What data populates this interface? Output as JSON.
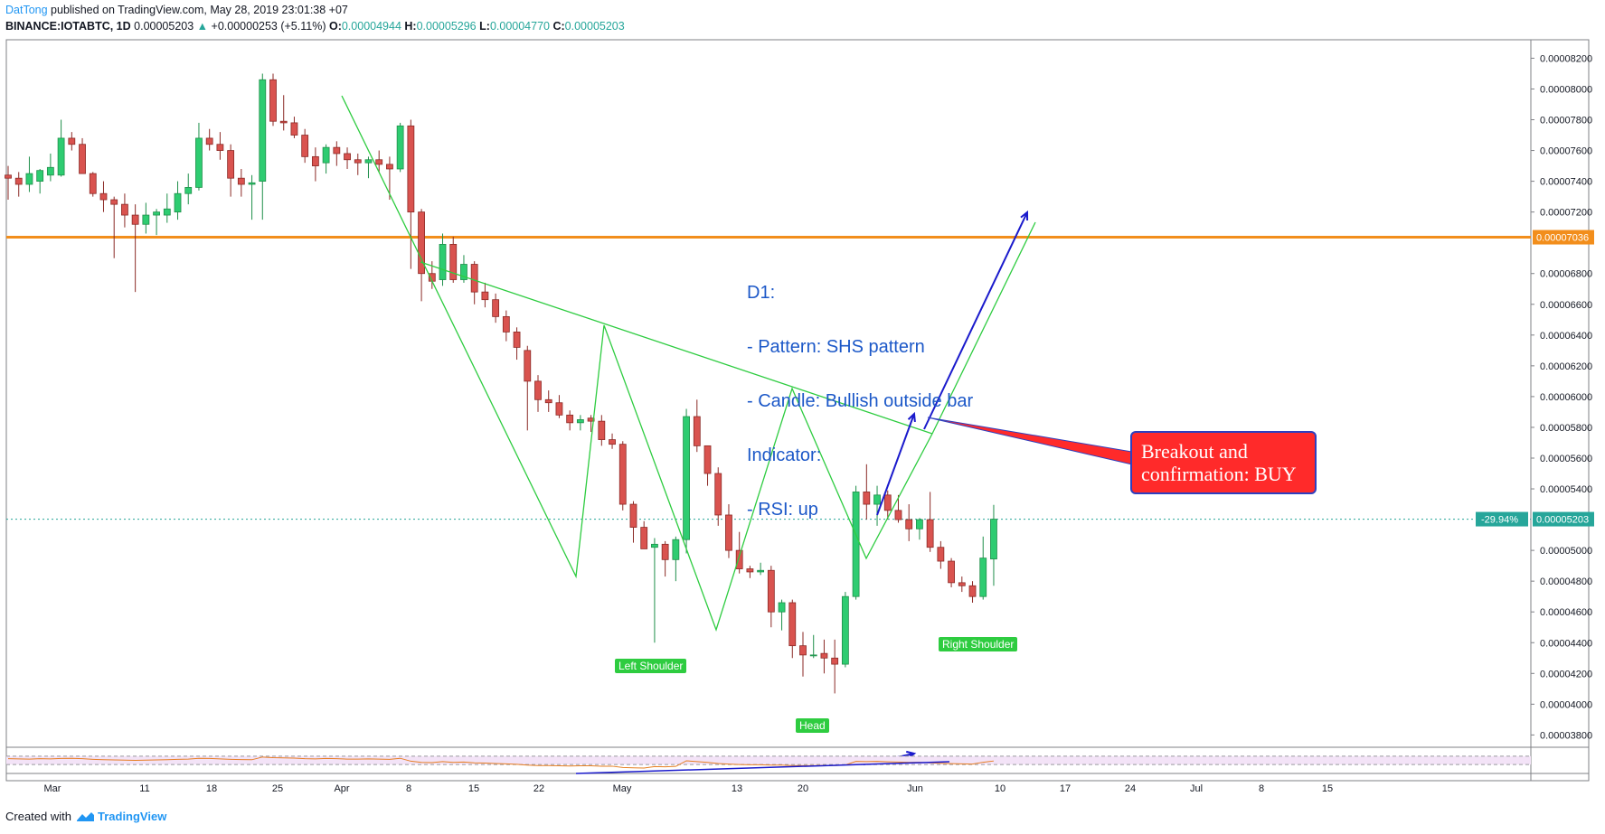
{
  "header": {
    "author": "DatTong",
    "published": "published on TradingView.com, May 28, 2019 23:01:38 +07",
    "symbol": "BINANCE:IOTABTC, 1D",
    "last": "0.00005203",
    "change": "+0.00000253 (+5.11%)",
    "o_label": "O:",
    "o": "0.00004944",
    "h_label": "H:",
    "h": "0.00005296",
    "l_label": "L:",
    "l": "0.00004770",
    "c_label": "C:",
    "c": "0.00005203"
  },
  "annotations": {
    "note_lines": [
      "D1:",
      "- Pattern: SHS pattern",
      "- Candle: Bullish outside bar",
      "Indicator:",
      "- RSI: up"
    ],
    "callout_lines": [
      "Breakout and",
      "confirmation: BUY"
    ],
    "left_shoulder": "Left Shoulder",
    "head": "Head",
    "right_shoulder": "Right Shoulder"
  },
  "colors": {
    "bull": "#26a69a",
    "bull_fill": "#2ecc71",
    "bear": "#d9534f",
    "pattern": "#2ecc40",
    "horizontal": "#f28e1c",
    "arrow": "#1a1acc",
    "current": "#26a69a"
  },
  "chart_data": {
    "type": "candlestick",
    "y_axis_labels": [
      "0.00008200",
      "0.00008000",
      "0.00007800",
      "0.00007600",
      "0.00007400",
      "0.00007200",
      "0.00006800",
      "0.00006600",
      "0.00006400",
      "0.00006200",
      "0.00006000",
      "0.00005800",
      "0.00005600",
      "0.00005400",
      "0.00005000",
      "0.00004800",
      "0.00004600",
      "0.00004400",
      "0.00004200",
      "0.00004000",
      "0.00003800"
    ],
    "x_axis_labels": [
      "Mar",
      "11",
      "18",
      "25",
      "Apr",
      "8",
      "15",
      "22",
      "May",
      "13",
      "20",
      "Jun",
      "10",
      "17",
      "24",
      "Jul",
      "8",
      "15"
    ],
    "ylim": [
      3.72e-05,
      8.32e-05
    ],
    "horizontal_level": {
      "value": 7.036e-05,
      "label": "0.00007036"
    },
    "current_price": {
      "value": 5.203e-05,
      "label": "0.00005203",
      "pct": "-29.94%"
    },
    "candles": [
      {
        "o": 7.44e-05,
        "h": 7.5e-05,
        "l": 7.28e-05,
        "c": 7.42e-05
      },
      {
        "o": 7.42e-05,
        "h": 7.46e-05,
        "l": 7.3e-05,
        "c": 7.38e-05
      },
      {
        "o": 7.38e-05,
        "h": 7.56e-05,
        "l": 7.33e-05,
        "c": 7.45e-05
      },
      {
        "o": 7.4e-05,
        "h": 7.48e-05,
        "l": 7.32e-05,
        "c": 7.47e-05
      },
      {
        "o": 7.44e-05,
        "h": 7.58e-05,
        "l": 7.4e-05,
        "c": 7.49e-05
      },
      {
        "o": 7.44e-05,
        "h": 7.8e-05,
        "l": 7.43e-05,
        "c": 7.68e-05
      },
      {
        "o": 7.68e-05,
        "h": 7.72e-05,
        "l": 7.6e-05,
        "c": 7.64e-05
      },
      {
        "o": 7.64e-05,
        "h": 7.68e-05,
        "l": 7.45e-05,
        "c": 7.45e-05
      },
      {
        "o": 7.45e-05,
        "h": 7.46e-05,
        "l": 7.3e-05,
        "c": 7.32e-05
      },
      {
        "o": 7.32e-05,
        "h": 7.4e-05,
        "l": 7.2e-05,
        "c": 7.28e-05
      },
      {
        "o": 7.28e-05,
        "h": 7.3e-05,
        "l": 6.9e-05,
        "c": 7.25e-05
      },
      {
        "o": 7.25e-05,
        "h": 7.32e-05,
        "l": 7.1e-05,
        "c": 7.18e-05
      },
      {
        "o": 7.18e-05,
        "h": 7.25e-05,
        "l": 6.68e-05,
        "c": 7.12e-05
      },
      {
        "o": 7.12e-05,
        "h": 7.26e-05,
        "l": 7.06e-05,
        "c": 7.18e-05
      },
      {
        "o": 7.18e-05,
        "h": 7.22e-05,
        "l": 7.05e-05,
        "c": 7.2e-05
      },
      {
        "o": 7.18e-05,
        "h": 7.32e-05,
        "l": 7.13e-05,
        "c": 7.22e-05
      },
      {
        "o": 7.2e-05,
        "h": 7.4e-05,
        "l": 7.15e-05,
        "c": 7.32e-05
      },
      {
        "o": 7.32e-05,
        "h": 7.45e-05,
        "l": 7.25e-05,
        "c": 7.36e-05
      },
      {
        "o": 7.36e-05,
        "h": 7.78e-05,
        "l": 7.34e-05,
        "c": 7.68e-05
      },
      {
        "o": 7.68e-05,
        "h": 7.74e-05,
        "l": 7.6e-05,
        "c": 7.64e-05
      },
      {
        "o": 7.64e-05,
        "h": 7.72e-05,
        "l": 7.54e-05,
        "c": 7.6e-05
      },
      {
        "o": 7.6e-05,
        "h": 7.64e-05,
        "l": 7.3e-05,
        "c": 7.42e-05
      },
      {
        "o": 7.42e-05,
        "h": 7.48e-05,
        "l": 7.3e-05,
        "c": 7.38e-05
      },
      {
        "o": 7.38e-05,
        "h": 7.44e-05,
        "l": 7.15e-05,
        "c": 7.39e-05
      },
      {
        "o": 7.4e-05,
        "h": 8.1e-05,
        "l": 7.15e-05,
        "c": 8.06e-05
      },
      {
        "o": 8.06e-05,
        "h": 8.1e-05,
        "l": 7.76e-05,
        "c": 7.79e-05
      },
      {
        "o": 7.79e-05,
        "h": 7.96e-05,
        "l": 7.73e-05,
        "c": 7.78e-05
      },
      {
        "o": 7.78e-05,
        "h": 7.82e-05,
        "l": 7.68e-05,
        "c": 7.7e-05
      },
      {
        "o": 7.7e-05,
        "h": 7.74e-05,
        "l": 7.52e-05,
        "c": 7.56e-05
      },
      {
        "o": 7.56e-05,
        "h": 7.62e-05,
        "l": 7.4e-05,
        "c": 7.5e-05
      },
      {
        "o": 7.52e-05,
        "h": 7.64e-05,
        "l": 7.45e-05,
        "c": 7.62e-05
      },
      {
        "o": 7.62e-05,
        "h": 7.66e-05,
        "l": 7.5e-05,
        "c": 7.58e-05
      },
      {
        "o": 7.58e-05,
        "h": 7.62e-05,
        "l": 7.48e-05,
        "c": 7.54e-05
      },
      {
        "o": 7.54e-05,
        "h": 7.58e-05,
        "l": 7.44e-05,
        "c": 7.52e-05
      },
      {
        "o": 7.52e-05,
        "h": 7.56e-05,
        "l": 7.42e-05,
        "c": 7.54e-05
      },
      {
        "o": 7.54e-05,
        "h": 7.6e-05,
        "l": 7.46e-05,
        "c": 7.51e-05
      },
      {
        "o": 7.51e-05,
        "h": 7.56e-05,
        "l": 7.28e-05,
        "c": 7.48e-05
      },
      {
        "o": 7.48e-05,
        "h": 7.78e-05,
        "l": 7.46e-05,
        "c": 7.76e-05
      },
      {
        "o": 7.76e-05,
        "h": 7.8e-05,
        "l": 6.83e-05,
        "c": 7.2e-05
      },
      {
        "o": 7.2e-05,
        "h": 7.22e-05,
        "l": 6.62e-05,
        "c": 6.8e-05
      },
      {
        "o": 6.8e-05,
        "h": 6.88e-05,
        "l": 6.7e-05,
        "c": 6.75e-05
      },
      {
        "o": 6.76e-05,
        "h": 7.06e-05,
        "l": 6.72e-05,
        "c": 6.99e-05
      },
      {
        "o": 6.99e-05,
        "h": 7.04e-05,
        "l": 6.74e-05,
        "c": 6.76e-05
      },
      {
        "o": 6.76e-05,
        "h": 6.92e-05,
        "l": 6.74e-05,
        "c": 6.86e-05
      },
      {
        "o": 6.86e-05,
        "h": 6.88e-05,
        "l": 6.6e-05,
        "c": 6.68e-05
      },
      {
        "o": 6.68e-05,
        "h": 6.74e-05,
        "l": 6.58e-05,
        "c": 6.63e-05
      },
      {
        "o": 6.63e-05,
        "h": 6.67e-05,
        "l": 6.48e-05,
        "c": 6.52e-05
      },
      {
        "o": 6.52e-05,
        "h": 6.56e-05,
        "l": 6.36e-05,
        "c": 6.42e-05
      },
      {
        "o": 6.42e-05,
        "h": 6.45e-05,
        "l": 6.24e-05,
        "c": 6.32e-05
      },
      {
        "o": 6.3e-05,
        "h": 6.33e-05,
        "l": 5.78e-05,
        "c": 6.1e-05
      },
      {
        "o": 6.1e-05,
        "h": 6.14e-05,
        "l": 5.9e-05,
        "c": 5.98e-05
      },
      {
        "o": 5.98e-05,
        "h": 6.04e-05,
        "l": 5.9e-05,
        "c": 5.96e-05
      },
      {
        "o": 5.96e-05,
        "h": 6.01e-05,
        "l": 5.86e-05,
        "c": 5.88e-05
      },
      {
        "o": 5.88e-05,
        "h": 5.91e-05,
        "l": 5.78e-05,
        "c": 5.83e-05
      },
      {
        "o": 5.83e-05,
        "h": 5.88e-05,
        "l": 5.78e-05,
        "c": 5.85e-05
      },
      {
        "o": 5.86e-05,
        "h": 5.88e-05,
        "l": 5.77e-05,
        "c": 5.84e-05
      },
      {
        "o": 5.84e-05,
        "h": 5.88e-05,
        "l": 5.68e-05,
        "c": 5.72e-05
      },
      {
        "o": 5.72e-05,
        "h": 5.76e-05,
        "l": 5.66e-05,
        "c": 5.69e-05
      },
      {
        "o": 5.69e-05,
        "h": 5.71e-05,
        "l": 5.26e-05,
        "c": 5.3e-05
      },
      {
        "o": 5.3e-05,
        "h": 5.32e-05,
        "l": 5.05e-05,
        "c": 5.15e-05
      },
      {
        "o": 5.15e-05,
        "h": 5.19e-05,
        "l": 5.01e-05,
        "c": 5.01e-05
      },
      {
        "o": 5.02e-05,
        "h": 5.08e-05,
        "l": 4.4e-05,
        "c": 5.04e-05
      },
      {
        "o": 5.04e-05,
        "h": 5.06e-05,
        "l": 4.83e-05,
        "c": 4.94e-05
      },
      {
        "o": 4.94e-05,
        "h": 5.09e-05,
        "l": 4.8e-05,
        "c": 5.07e-05
      },
      {
        "o": 5.07e-05,
        "h": 5.92e-05,
        "l": 4.98e-05,
        "c": 5.87e-05
      },
      {
        "o": 5.87e-05,
        "h": 5.98e-05,
        "l": 5.64e-05,
        "c": 5.68e-05
      },
      {
        "o": 5.68e-05,
        "h": 5.68e-05,
        "l": 5.42e-05,
        "c": 5.5e-05
      },
      {
        "o": 5.5e-05,
        "h": 5.54e-05,
        "l": 5.16e-05,
        "c": 5.23e-05
      },
      {
        "o": 5.23e-05,
        "h": 5.3e-05,
        "l": 4.95e-05,
        "c": 5e-05
      },
      {
        "o": 5e-05,
        "h": 5.12e-05,
        "l": 4.85e-05,
        "c": 4.88e-05
      },
      {
        "o": 4.88e-05,
        "h": 4.9e-05,
        "l": 4.82e-05,
        "c": 4.86e-05
      },
      {
        "o": 4.86e-05,
        "h": 4.92e-05,
        "l": 4.84e-05,
        "c": 4.87e-05
      },
      {
        "o": 4.87e-05,
        "h": 4.9e-05,
        "l": 4.5e-05,
        "c": 4.6e-05
      },
      {
        "o": 4.6e-05,
        "h": 4.68e-05,
        "l": 4.48e-05,
        "c": 4.66e-05
      },
      {
        "o": 4.66e-05,
        "h": 4.68e-05,
        "l": 4.3e-05,
        "c": 4.38e-05
      },
      {
        "o": 4.38e-05,
        "h": 4.47e-05,
        "l": 4.18e-05,
        "c": 4.32e-05
      },
      {
        "o": 4.32e-05,
        "h": 4.45e-05,
        "l": 4.3e-05,
        "c": 4.32e-05
      },
      {
        "o": 4.33e-05,
        "h": 4.42e-05,
        "l": 4.2e-05,
        "c": 4.3e-05
      },
      {
        "o": 4.3e-05,
        "h": 4.42e-05,
        "l": 4.07e-05,
        "c": 4.26e-05
      },
      {
        "o": 4.26e-05,
        "h": 4.73e-05,
        "l": 4.24e-05,
        "c": 4.7e-05
      },
      {
        "o": 4.7e-05,
        "h": 5.42e-05,
        "l": 4.68e-05,
        "c": 5.38e-05
      },
      {
        "o": 5.38e-05,
        "h": 5.56e-05,
        "l": 5.2e-05,
        "c": 5.3e-05
      },
      {
        "o": 5.3e-05,
        "h": 5.42e-05,
        "l": 5.16e-05,
        "c": 5.36e-05
      },
      {
        "o": 5.36e-05,
        "h": 5.39e-05,
        "l": 5.2e-05,
        "c": 5.26e-05
      },
      {
        "o": 5.26e-05,
        "h": 5.36e-05,
        "l": 5.18e-05,
        "c": 5.2e-05
      },
      {
        "o": 5.2e-05,
        "h": 5.3e-05,
        "l": 5.06e-05,
        "c": 5.14e-05
      },
      {
        "o": 5.14e-05,
        "h": 5.21e-05,
        "l": 5.07e-05,
        "c": 5.2e-05
      },
      {
        "o": 5.2e-05,
        "h": 5.38e-05,
        "l": 4.99e-05,
        "c": 5.02e-05
      },
      {
        "o": 5.02e-05,
        "h": 5.06e-05,
        "l": 4.88e-05,
        "c": 4.93e-05
      },
      {
        "o": 4.93e-05,
        "h": 4.95e-05,
        "l": 4.76e-05,
        "c": 4.79e-05
      },
      {
        "o": 4.79e-05,
        "h": 4.83e-05,
        "l": 4.73e-05,
        "c": 4.77e-05
      },
      {
        "o": 4.77e-05,
        "h": 4.8e-05,
        "l": 4.66e-05,
        "c": 4.7e-05
      },
      {
        "o": 4.7e-05,
        "h": 5.09e-05,
        "l": 4.68e-05,
        "c": 4.95e-05
      },
      {
        "o": 4.944e-05,
        "h": 5.296e-05,
        "l": 4.77e-05,
        "c": 5.203e-05
      }
    ],
    "rsi": {
      "upper": 70,
      "lower": 30,
      "values": [
        58,
        57,
        56,
        58,
        57,
        59,
        60,
        58,
        55,
        53,
        52,
        51,
        50,
        51,
        52,
        53,
        55,
        56,
        60,
        59,
        57,
        55,
        54,
        53,
        66,
        63,
        62,
        61,
        58,
        57,
        59,
        58,
        56,
        56,
        57,
        56,
        55,
        60,
        46,
        40,
        39,
        44,
        40,
        42,
        38,
        37,
        35,
        33,
        31,
        27,
        25,
        25,
        24,
        23,
        24,
        24,
        22,
        22,
        16,
        14,
        13,
        20,
        19,
        21,
        48,
        44,
        40,
        35,
        32,
        30,
        29,
        29,
        27,
        27,
        25,
        25,
        25,
        26,
        25,
        28,
        45,
        44,
        45,
        43,
        42,
        40,
        41,
        38,
        36,
        34,
        33,
        32,
        41,
        47
      ]
    }
  }
}
